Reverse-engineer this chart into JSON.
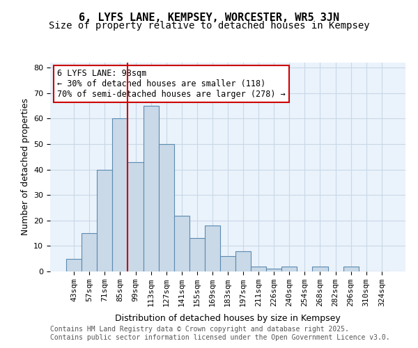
{
  "title1": "6, LYFS LANE, KEMPSEY, WORCESTER, WR5 3JN",
  "title2": "Size of property relative to detached houses in Kempsey",
  "xlabel": "Distribution of detached houses by size in Kempsey",
  "ylabel": "Number of detached properties",
  "bar_labels": [
    "43sqm",
    "57sqm",
    "71sqm",
    "85sqm",
    "99sqm",
    "113sqm",
    "127sqm",
    "141sqm",
    "155sqm",
    "169sqm",
    "183sqm",
    "197sqm",
    "211sqm",
    "226sqm",
    "240sqm",
    "254sqm",
    "268sqm",
    "282sqm",
    "296sqm",
    "310sqm",
    "324sqm"
  ],
  "bar_values": [
    5,
    15,
    40,
    60,
    43,
    65,
    50,
    22,
    13,
    18,
    6,
    8,
    2,
    1,
    2,
    0,
    2,
    0,
    2,
    0,
    0
  ],
  "bar_color": "#c9d9e8",
  "bar_edge_color": "#5a8ab0",
  "vline_x": 4.0,
  "vline_color": "#cc0000",
  "annotation_text": "6 LYFS LANE: 98sqm\n← 30% of detached houses are smaller (118)\n70% of semi-detached houses are larger (278) →",
  "annotation_box_color": "#ffffff",
  "annotation_box_edge": "#cc0000",
  "annotation_fontsize": 8.5,
  "ylim": [
    0,
    82
  ],
  "yticks": [
    0,
    10,
    20,
    30,
    40,
    50,
    60,
    70,
    80
  ],
  "grid_color": "#c8d8e8",
  "background_color": "#eaf2fb",
  "footer": "Contains HM Land Registry data © Crown copyright and database right 2025.\nContains public sector information licensed under the Open Government Licence v3.0.",
  "title_fontsize": 11,
  "subtitle_fontsize": 10,
  "axis_label_fontsize": 9,
  "tick_fontsize": 8,
  "footer_fontsize": 7
}
